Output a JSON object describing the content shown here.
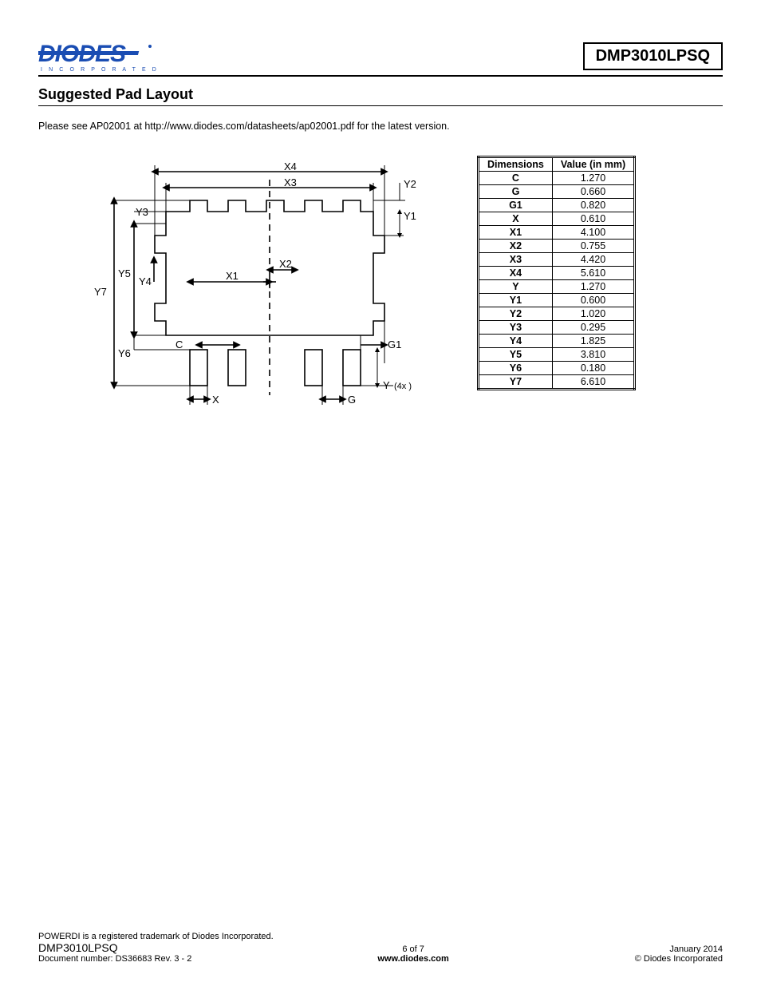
{
  "header": {
    "logo_main": "DIODES",
    "logo_sub": "I N C O R P O R A T E D",
    "part_number": "DMP3010LPSQ"
  },
  "section_title": "Suggested Pad Layout",
  "note": "Please see AP02001 at http://www.diodes.com/datasheets/ap02001.pdf for the latest version.",
  "diagram": {
    "labels": {
      "X4": "X4",
      "X3": "X3",
      "X2": "X2",
      "X1": "X1",
      "Y2": "Y2",
      "Y1": "Y1",
      "Y3": "Y3",
      "Y4": "Y4",
      "Y5": "Y5",
      "Y6": "Y6",
      "Y7": "Y7",
      "C": "C",
      "G1": "G1",
      "X": "X",
      "G": "G",
      "Y": "Y",
      "Y_suffix": "(4x )"
    },
    "stroke": "#000000",
    "fill": "#ffffff",
    "line_width": 1.5
  },
  "table": {
    "headers": [
      "Dimensions",
      "Value (in mm)"
    ],
    "rows": [
      [
        "C",
        "1.270"
      ],
      [
        "G",
        "0.660"
      ],
      [
        "G1",
        "0.820"
      ],
      [
        "X",
        "0.610"
      ],
      [
        "X1",
        "4.100"
      ],
      [
        "X2",
        "0.755"
      ],
      [
        "X3",
        "4.420"
      ],
      [
        "X4",
        "5.610"
      ],
      [
        "Y",
        "1.270"
      ],
      [
        "Y1",
        "0.600"
      ],
      [
        "Y2",
        "1.020"
      ],
      [
        "Y3",
        "0.295"
      ],
      [
        "Y4",
        "1.825"
      ],
      [
        "Y5",
        "3.810"
      ],
      [
        "Y6",
        "0.180"
      ],
      [
        "Y7",
        "6.610"
      ]
    ]
  },
  "footer": {
    "trademark": "POWERDI is a registered trademark of Diodes Incorporated.",
    "part": "DMP3010LPSQ",
    "docnum": "Document number: DS36683 Rev. 3 - 2",
    "page": "6 of 7",
    "url": "www.diodes.com",
    "date": "January 2014",
    "copyright": "© Diodes Incorporated"
  }
}
